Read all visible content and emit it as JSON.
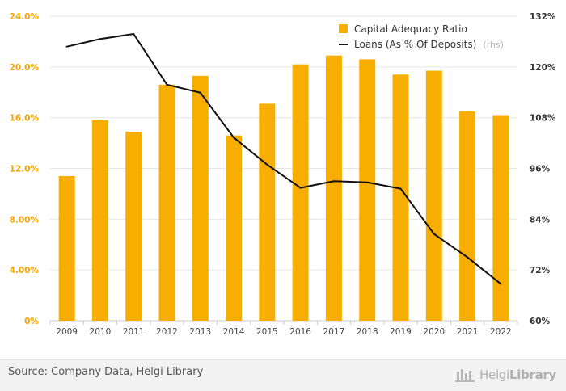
{
  "chart_data": {
    "type": "bar+line",
    "categories": [
      "2009",
      "2010",
      "2011",
      "2012",
      "2013",
      "2014",
      "2015",
      "2016",
      "2017",
      "2018",
      "2019",
      "2020",
      "2021",
      "2022"
    ],
    "series": [
      {
        "name": "Capital Adequacy Ratio",
        "type": "bar",
        "axis": "left",
        "color": "#f8ae00",
        "values": [
          11.4,
          15.8,
          14.9,
          18.6,
          19.3,
          14.6,
          17.1,
          20.2,
          20.9,
          20.6,
          19.4,
          19.7,
          16.5,
          16.2
        ]
      },
      {
        "name": "Loans (As % Of Deposits)",
        "suffix": "(rhs)",
        "type": "line",
        "axis": "right",
        "color": "#111111",
        "values": [
          124.8,
          126.6,
          127.8,
          115.8,
          113.9,
          103.3,
          96.9,
          91.4,
          93.0,
          92.7,
          91.2,
          80.5,
          75.0,
          68.7
        ]
      }
    ],
    "y_left": {
      "min": 0,
      "max": 24,
      "ticks": [
        "0%",
        "4.00%",
        "8.00%",
        "12.0%",
        "16.0%",
        "20.0%",
        "24.0%"
      ]
    },
    "y_right": {
      "min": 60,
      "max": 132,
      "ticks": [
        "60%",
        "72%",
        "84%",
        "96%",
        "108%",
        "120%",
        "132%"
      ]
    },
    "grid": true,
    "legend_position": "top-right"
  },
  "footer": {
    "source": "Source: Company Data, Helgi Library",
    "brand_part1": "Helgi",
    "brand_part2": "Library"
  }
}
